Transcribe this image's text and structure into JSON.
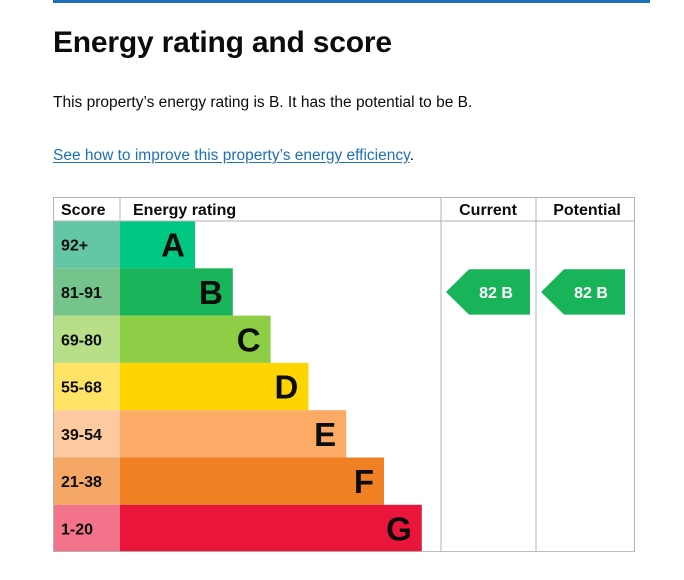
{
  "page": {
    "title": "Energy rating and score",
    "summary": "This property’s energy rating is B. It has the potential to be B.",
    "link_text": "See how to improve this property’s energy efficiency",
    "link_suffix": "."
  },
  "table": {
    "headers": {
      "score": "Score",
      "rating": "Energy rating",
      "current": "Current",
      "potential": "Potential"
    },
    "bands": [
      {
        "score": "92+",
        "letter": "A",
        "color": "#00c781",
        "score_bg": "#64c7a4"
      },
      {
        "score": "81-91",
        "letter": "B",
        "color": "#19b459",
        "score_bg": "#74c48c"
      },
      {
        "score": "69-80",
        "letter": "C",
        "color": "#8dce46",
        "score_bg": "#b6df88"
      },
      {
        "score": "55-68",
        "letter": "D",
        "color": "#ffd500",
        "score_bg": "#ffe366"
      },
      {
        "score": "39-54",
        "letter": "E",
        "color": "#fcaa65",
        "score_bg": "#fdcaa0"
      },
      {
        "score": "21-38",
        "letter": "F",
        "color": "#ef8023",
        "score_bg": "#f5a765"
      },
      {
        "score": "1-20",
        "letter": "G",
        "color": "#e9153b",
        "score_bg": "#f2738a"
      }
    ],
    "current": {
      "label": "82 B",
      "band": "B",
      "color": "#19b459"
    },
    "potential": {
      "label": "82 B",
      "band": "B",
      "color": "#19b459"
    }
  }
}
